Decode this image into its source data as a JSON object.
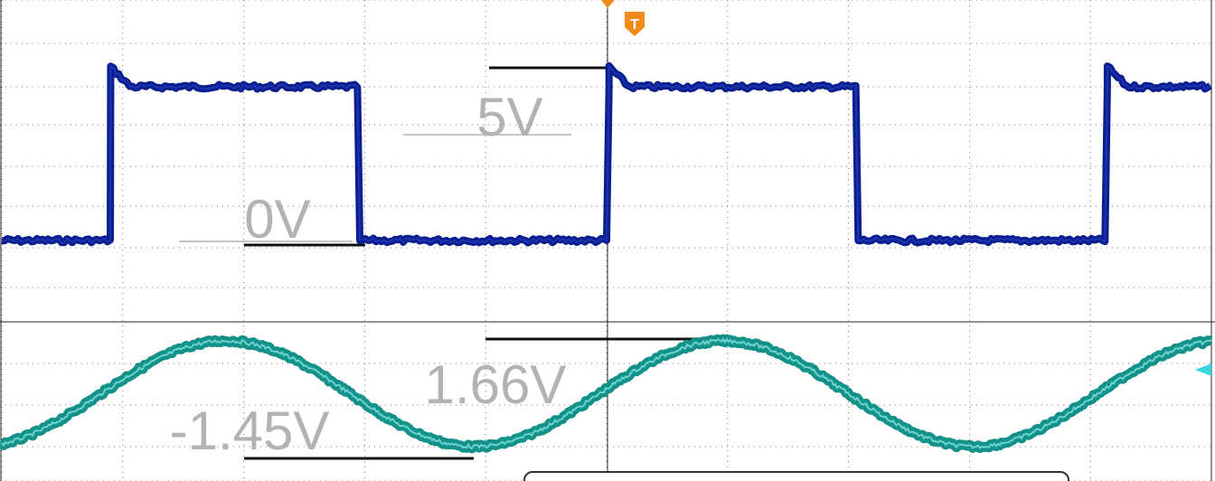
{
  "chart_data": {
    "type": "line",
    "title": "",
    "xlabel": "",
    "ylabel": "",
    "grid": true,
    "x_divisions": 10,
    "y_divisions": 8,
    "trigger": {
      "label": "T"
    },
    "series": [
      {
        "kind": "square",
        "color": "#0a1f8f",
        "low": 0,
        "high": 5,
        "high_level_label": "5V",
        "low_level_label": "0V",
        "edges": [
          {
            "t": 0.0,
            "level": "low"
          },
          {
            "t": 0.9,
            "level": "high"
          },
          {
            "t": 2.96,
            "level": "low"
          },
          {
            "t": 5.02,
            "level": "high"
          },
          {
            "t": 7.08,
            "level": "low"
          },
          {
            "t": 9.14,
            "level": "high"
          }
        ],
        "t_end": 10.0
      },
      {
        "kind": "sine",
        "color": "#14928a",
        "max": 1.66,
        "min": -1.45,
        "max_label": "1.66V",
        "min_label": "-1.45V",
        "period_div": 4.12,
        "first_peak_div": 1.85
      }
    ],
    "annotations": [
      {
        "text": "5V"
      },
      {
        "text": "0V"
      },
      {
        "text": "1.66V"
      },
      {
        "text": "-1.45V"
      }
    ]
  }
}
